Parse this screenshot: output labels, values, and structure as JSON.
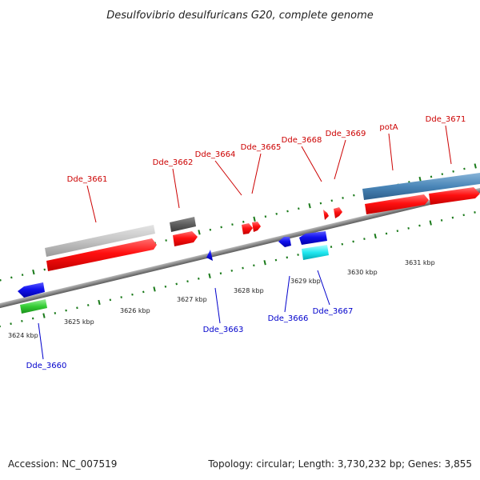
{
  "title": "Desulfovibrio desulfuricans G20, complete genome",
  "footer": {
    "accession": "Accession: NC_007519",
    "summary": "Topology: circular; Length: 3,730,232 bp; Genes: 3,855"
  },
  "colors": {
    "backbone": "#808080",
    "forward_label": "#cc0000",
    "reverse_label": "#0000cc",
    "tick": "#1a7a1a"
  },
  "kbp_ticks": [
    "3624 kbp",
    "3625 kbp",
    "3626 kbp",
    "3627 kbp",
    "3628 kbp",
    "3629 kbp",
    "3630 kbp",
    "3631 kbp"
  ],
  "forward_labels": [
    "Dde_3661",
    "Dde_3662",
    "Dde_3664",
    "Dde_3665",
    "Dde_3668",
    "Dde_3669",
    "potA",
    "Dde_3671"
  ],
  "reverse_labels": [
    "Dde_3660",
    "Dde_3663",
    "Dde_3666",
    "Dde_3667"
  ]
}
